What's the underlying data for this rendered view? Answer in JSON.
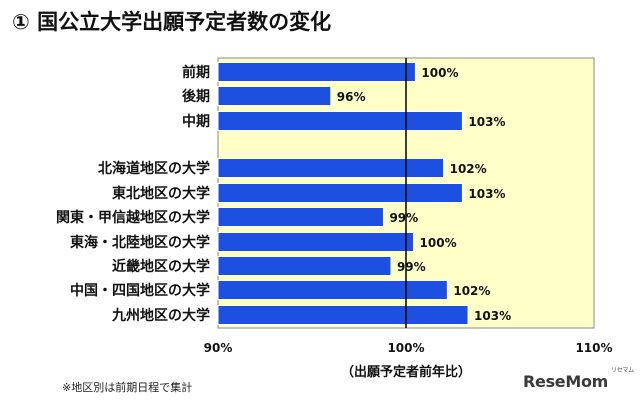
{
  "title": "① 国公立大学出願予定者数の変化",
  "footnote": "※地区別は前期日程で集計",
  "watermark": "ReseMom",
  "watermark_sub": "リセマム",
  "colors": {
    "plot_background": "#ffffc8",
    "bar": "#1d4fe0",
    "bar_border": "#ffffff",
    "baseline": "#000000"
  },
  "chart_data": {
    "type": "bar",
    "orientation": "horizontal",
    "xlabel": "（出願予定者前年比）",
    "xlim": [
      90,
      110
    ],
    "xticks": [
      "90%",
      "100%",
      "110%"
    ],
    "baseline": 100,
    "categories": [
      "前期",
      "後期",
      "中期",
      "北海道地区の大学",
      "東北地区の大学",
      "関東・甲信越地区の大学",
      "東海・北陸地区の大学",
      "近畿地区の大学",
      "中国・四国地区の大学",
      "九州地区の大学"
    ],
    "values": [
      100.5,
      96,
      103,
      102,
      103,
      98.8,
      100.4,
      99.2,
      102.2,
      103.3
    ],
    "value_labels": [
      "100%",
      "96%",
      "103%",
      "102%",
      "103%",
      "99%",
      "100%",
      "99%",
      "102%",
      "103%"
    ]
  }
}
